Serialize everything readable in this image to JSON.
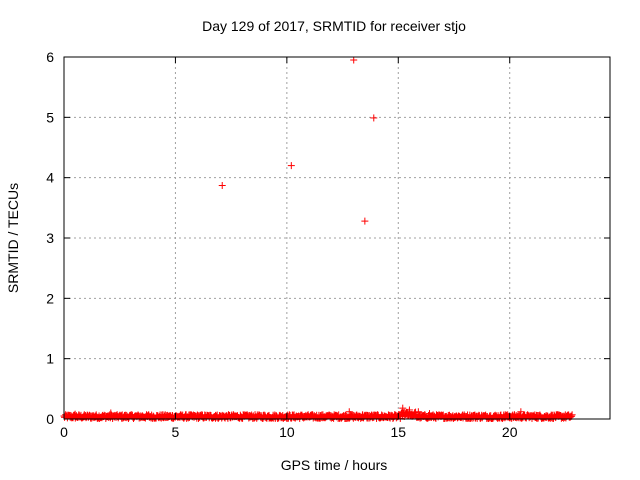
{
  "chart_data": {
    "type": "scatter",
    "title": "Day 129 of 2017, SRMTID for receiver stjo",
    "xlabel": "GPS time / hours",
    "ylabel": "SRMTID / TECUs",
    "xlim": [
      0,
      24.5
    ],
    "ylim": [
      0,
      6
    ],
    "xticks": [
      0,
      5,
      10,
      15,
      20
    ],
    "yticks": [
      0,
      1,
      2,
      3,
      4,
      5,
      6
    ],
    "x_tick_labels": [
      "0",
      "5",
      "10",
      "15",
      "20"
    ],
    "y_tick_labels": [
      "0",
      "1",
      "2",
      "3",
      "4",
      "5",
      "6"
    ],
    "grid": true,
    "marker": "+",
    "series": [
      {
        "color": "#ff0000",
        "x": [
          7.1,
          10.2,
          13.0,
          13.5,
          13.9,
          0.2,
          0.5,
          0.9,
          1.4,
          2.1,
          2.6,
          3.2,
          3.8,
          4.5,
          5.2,
          6.0,
          6.8,
          7.6,
          8.4,
          9.2,
          10.0,
          10.8,
          11.5,
          12.2,
          12.8,
          13.4,
          14.0,
          14.6,
          15.2,
          15.5,
          15.9,
          16.4,
          17.0,
          17.7,
          18.4,
          19.1,
          19.8,
          20.5,
          21.2,
          21.9,
          22.6
        ],
        "y": [
          3.87,
          4.2,
          5.95,
          3.28,
          4.99,
          0.05,
          0.08,
          0.06,
          0.05,
          0.1,
          0.06,
          0.05,
          0.07,
          0.05,
          0.04,
          0.05,
          0.06,
          0.05,
          0.04,
          0.06,
          0.05,
          0.04,
          0.05,
          0.06,
          0.12,
          0.07,
          0.05,
          0.06,
          0.18,
          0.15,
          0.12,
          0.09,
          0.06,
          0.05,
          0.06,
          0.05,
          0.07,
          0.12,
          0.06,
          0.05,
          0.06
        ]
      }
    ],
    "dense_band": {
      "x_range": [
        0,
        22.8
      ],
      "y_base": 0.04,
      "y_jitter": 0.04,
      "note_color": "#ff0000"
    }
  }
}
